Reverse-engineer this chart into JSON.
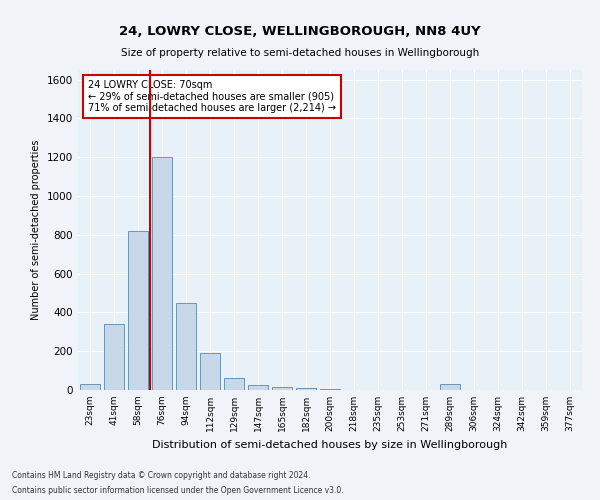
{
  "title": "24, LOWRY CLOSE, WELLINGBOROUGH, NN8 4UY",
  "subtitle": "Size of property relative to semi-detached houses in Wellingborough",
  "xlabel": "Distribution of semi-detached houses by size in Wellingborough",
  "ylabel": "Number of semi-detached properties",
  "footnote1": "Contains HM Land Registry data © Crown copyright and database right 2024.",
  "footnote2": "Contains public sector information licensed under the Open Government Licence v3.0.",
  "bar_color": "#c8d8e8",
  "bar_edge_color": "#5a8ab0",
  "background_color": "#e8f0f8",
  "fig_background_color": "#f0f4f8",
  "grid_color": "#ffffff",
  "vline_color": "#cc0000",
  "annotation_text_line1": "24 LOWRY CLOSE: 70sqm",
  "annotation_text_line2": "← 29% of semi-detached houses are smaller (905)",
  "annotation_text_line3": "71% of semi-detached houses are larger (2,214) →",
  "annotation_box_color": "#cc0000",
  "vline_position": 2.5,
  "categories": [
    "23sqm",
    "41sqm",
    "58sqm",
    "76sqm",
    "94sqm",
    "112sqm",
    "129sqm",
    "147sqm",
    "165sqm",
    "182sqm",
    "200sqm",
    "218sqm",
    "235sqm",
    "253sqm",
    "271sqm",
    "289sqm",
    "306sqm",
    "324sqm",
    "342sqm",
    "359sqm",
    "377sqm"
  ],
  "values": [
    30,
    340,
    820,
    1200,
    450,
    190,
    60,
    25,
    15,
    10,
    5,
    0,
    0,
    0,
    0,
    30,
    0,
    0,
    0,
    0,
    0
  ],
  "ylim": [
    0,
    1650
  ],
  "yticks": [
    0,
    200,
    400,
    600,
    800,
    1000,
    1200,
    1400,
    1600
  ]
}
